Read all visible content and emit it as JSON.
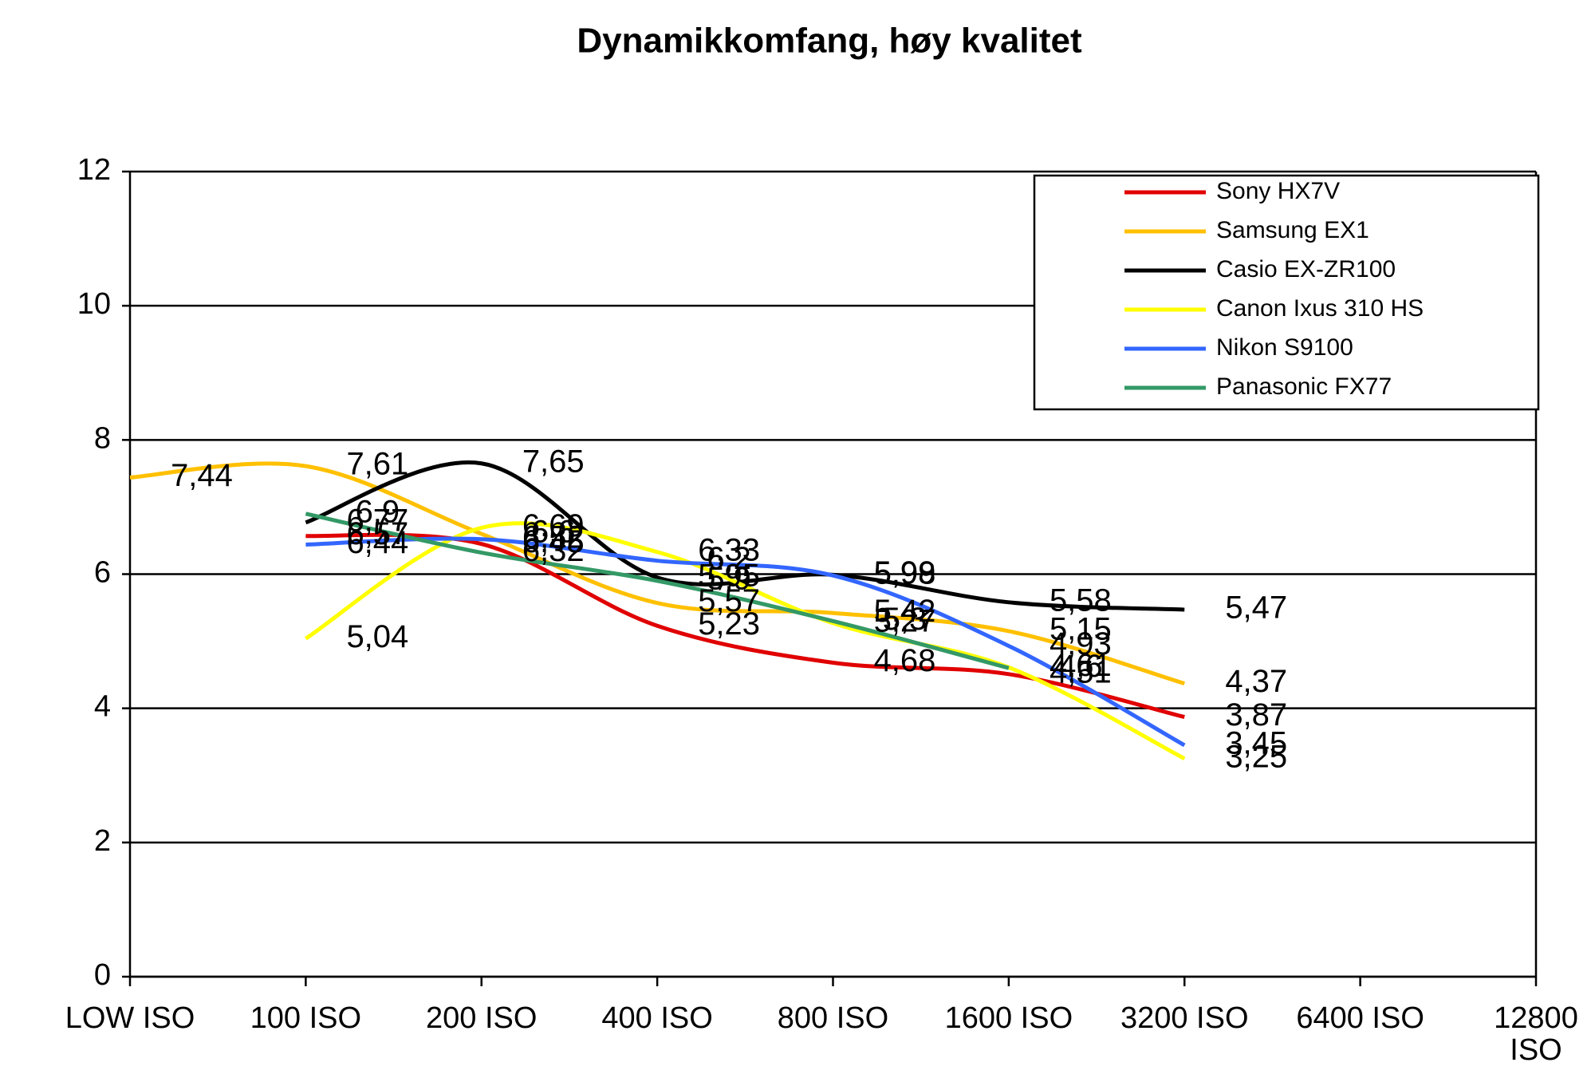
{
  "chart_data": {
    "type": "line",
    "title": "Dynamikkomfang, høy kvalitet",
    "categories": [
      "LOW ISO",
      "100 ISO",
      "200 ISO",
      "400 ISO",
      "800 ISO",
      "1600 ISO",
      "3200 ISO",
      "6400 ISO",
      "12800 ISO"
    ],
    "ylim": [
      0,
      12
    ],
    "yticks": [
      0,
      2,
      4,
      6,
      8,
      10,
      12
    ],
    "grid": true,
    "legend": "upper right",
    "series": [
      {
        "name": "Sony HX7V",
        "color": "#e00000",
        "values": [
          null,
          6.57,
          6.45,
          5.23,
          4.68,
          4.51,
          3.87,
          null,
          null
        ],
        "value_labels": [
          null,
          "6,57",
          "6,45",
          "5,23",
          "4,68",
          "4,51",
          "3,87",
          null,
          null
        ]
      },
      {
        "name": "Samsung EX1",
        "color": "#ffc000",
        "values": [
          7.44,
          7.61,
          6.6,
          5.57,
          5.42,
          5.15,
          4.37,
          null,
          null
        ],
        "value_labels": [
          "7,44",
          "7,61",
          "6,6",
          "5,57",
          "5,42",
          "5,15",
          "4,37",
          null,
          null
        ]
      },
      {
        "name": "Casio EX-ZR100",
        "color": "#000000",
        "values": [
          null,
          6.77,
          7.65,
          5.95,
          5.99,
          5.58,
          5.47,
          null,
          null
        ],
        "value_labels": [
          null,
          "6,77",
          "7,65",
          "5,95",
          "5,99",
          "5,58",
          "5,47",
          null,
          null
        ]
      },
      {
        "name": "Canon Ixus 310 HS",
        "color": "#ffff00",
        "values": [
          null,
          5.04,
          6.69,
          6.33,
          5.27,
          4.61,
          3.25,
          null,
          null
        ],
        "value_labels": [
          null,
          "5,04",
          "6,69",
          "6,33",
          "5,27",
          "4,61",
          "3,25",
          null,
          null
        ]
      },
      {
        "name": "Nikon S9100",
        "color": "#3366ff",
        "values": [
          null,
          6.44,
          6.52,
          6.2,
          5.98,
          4.93,
          3.45,
          null,
          null
        ],
        "value_labels": [
          null,
          "6,44",
          "6,52",
          "6,2",
          "5,98",
          "4,93",
          "3,45",
          null,
          null
        ]
      },
      {
        "name": "Panasonic FX77",
        "color": "#339966",
        "values": [
          null,
          6.9,
          6.32,
          5.9,
          5.3,
          4.6,
          null,
          null,
          null
        ],
        "value_labels": [
          null,
          "6,9",
          "6,32",
          "5,9",
          "5,3",
          "4,6",
          null,
          null,
          null
        ]
      }
    ]
  }
}
